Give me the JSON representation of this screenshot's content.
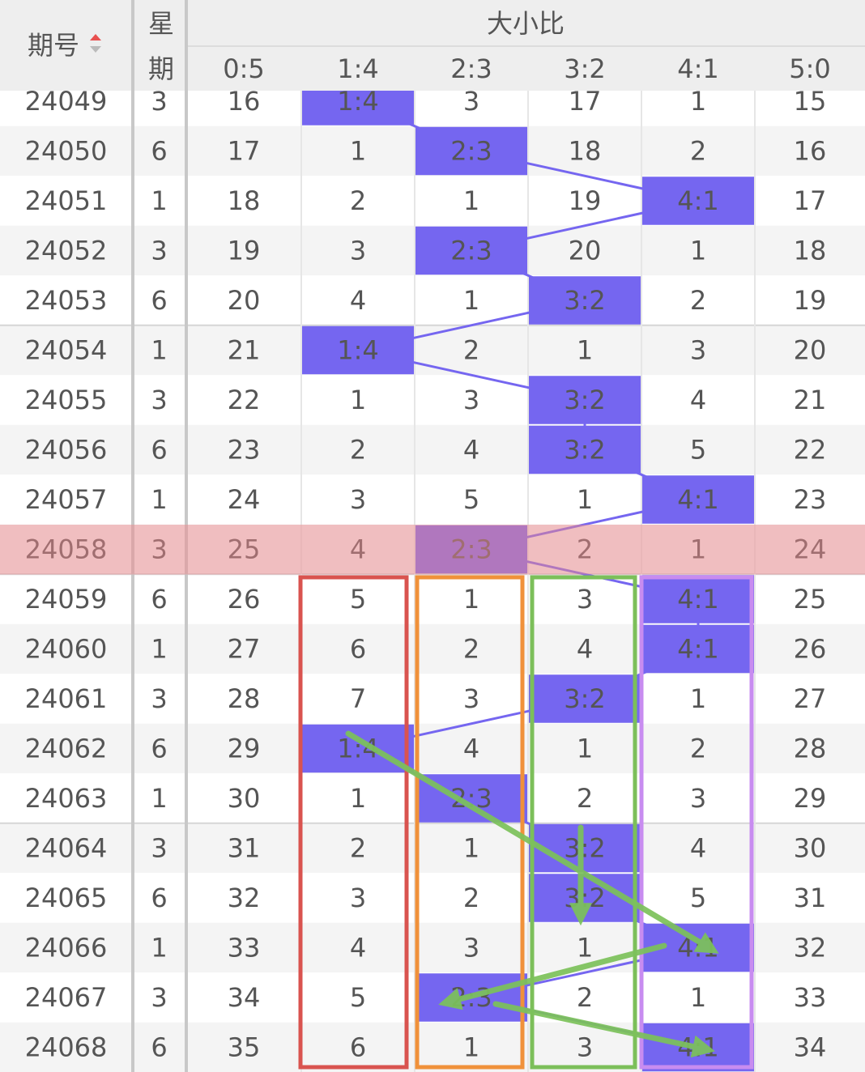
{
  "header": {
    "title": "期号",
    "weekday": [
      "星",
      "期"
    ],
    "group": "大小比",
    "columns": [
      "0:5",
      "1:4",
      "2:3",
      "3:2",
      "4:1",
      "5:0"
    ]
  },
  "table": {
    "rows": [
      [
        24049,
        3,
        16,
        "1:4",
        3,
        17,
        1,
        15
      ],
      [
        24050,
        6,
        17,
        1,
        "2:3",
        18,
        2,
        16
      ],
      [
        24051,
        1,
        18,
        2,
        1,
        19,
        "4:1",
        17
      ],
      [
        24052,
        3,
        19,
        3,
        "2:3",
        20,
        1,
        18
      ],
      [
        24053,
        6,
        20,
        4,
        1,
        "3:2",
        2,
        19
      ],
      [
        24054,
        1,
        21,
        "1:4",
        2,
        1,
        3,
        20
      ],
      [
        24055,
        3,
        22,
        1,
        3,
        "3:2",
        4,
        21
      ],
      [
        24056,
        6,
        23,
        2,
        4,
        "3:2",
        5,
        22
      ],
      [
        24057,
        1,
        24,
        3,
        5,
        1,
        "4:1",
        23
      ],
      [
        24058,
        3,
        25,
        4,
        "2:3",
        2,
        1,
        24
      ],
      [
        24059,
        6,
        26,
        5,
        1,
        3,
        "4:1",
        25
      ],
      [
        24060,
        1,
        27,
        6,
        2,
        4,
        "4:1",
        26
      ],
      [
        24061,
        3,
        28,
        7,
        3,
        "3:2",
        1,
        27
      ],
      [
        24062,
        6,
        29,
        "1:4",
        4,
        1,
        2,
        28
      ],
      [
        24063,
        1,
        30,
        1,
        "2:3",
        2,
        3,
        29
      ],
      [
        24064,
        3,
        31,
        2,
        1,
        "3:2",
        4,
        30
      ],
      [
        24065,
        6,
        32,
        3,
        2,
        "3:2",
        5,
        31
      ],
      [
        24066,
        1,
        33,
        4,
        3,
        1,
        "4:1",
        32
      ],
      [
        24067,
        3,
        34,
        5,
        "2:3",
        2,
        1,
        33
      ],
      [
        24068,
        6,
        35,
        6,
        1,
        3,
        "4:1",
        34
      ]
    ]
  }
}
